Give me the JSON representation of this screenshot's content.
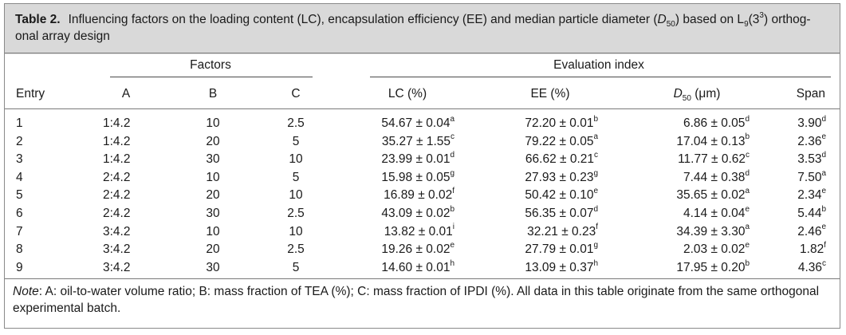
{
  "caption": {
    "label": "Table 2.",
    "text_before": "Influencing factors on the loading content (LC), encapsulation efficiency (EE) and median particle diameter (",
    "d_symbol": "D",
    "d_sub": "50",
    "text_mid": ") based on L",
    "l_sub": "9",
    "l_open": "(3",
    "l_sup": "3",
    "text_after": ") orthog-",
    "line2": "onal array design"
  },
  "group_headers": {
    "factors": "Factors",
    "evaluation": "Evaluation index"
  },
  "columns": {
    "entry": "Entry",
    "a": "A",
    "b": "B",
    "c": "C",
    "lc": "LC (%)",
    "ee": "EE (%)",
    "d50_symbol": "D",
    "d50_sub": "50",
    "d50_unit": " (μm)",
    "span": "Span"
  },
  "rows": [
    {
      "entry": "1",
      "a": "1:4.2",
      "b": "10",
      "c": "2.5",
      "lc": "54.67 ± 0.04",
      "lc_sup": "a",
      "ee": "72.20 ± 0.01",
      "ee_sup": "b",
      "d50": "6.86 ± 0.05",
      "d50_sup": "d",
      "span": "3.90",
      "span_sup": "d"
    },
    {
      "entry": "2",
      "a": "1:4.2",
      "b": "20",
      "c": "5",
      "lc": "35.27 ± 1.55",
      "lc_sup": "c",
      "ee": "79.22 ± 0.05",
      "ee_sup": "a",
      "d50": "17.04 ± 0.13",
      "d50_sup": "b",
      "span": "2.36",
      "span_sup": "e"
    },
    {
      "entry": "3",
      "a": "1:4.2",
      "b": "30",
      "c": "10",
      "lc": "23.99 ± 0.01",
      "lc_sup": "d",
      "ee": "66.62 ± 0.21",
      "ee_sup": "c",
      "d50": "11.77 ± 0.62",
      "d50_sup": "c",
      "span": "3.53",
      "span_sup": "d"
    },
    {
      "entry": "4",
      "a": "2:4.2",
      "b": "10",
      "c": "5",
      "lc": "15.98 ± 0.05",
      "lc_sup": "g",
      "ee": "27.93 ± 0.23",
      "ee_sup": "g",
      "d50": "7.44 ± 0.38",
      "d50_sup": "d",
      "span": "7.50",
      "span_sup": "a"
    },
    {
      "entry": "5",
      "a": "2:4.2",
      "b": "20",
      "c": "10",
      "lc": "16.89 ± 0.02",
      "lc_sup": "f",
      "ee": "50.42 ± 0.10",
      "ee_sup": "e",
      "d50": "35.65 ± 0.02",
      "d50_sup": "a",
      "span": "2.34",
      "span_sup": "e"
    },
    {
      "entry": "6",
      "a": "2:4.2",
      "b": "30",
      "c": "2.5",
      "lc": "43.09 ± 0.02",
      "lc_sup": "b",
      "ee": "56.35 ± 0.07",
      "ee_sup": "d",
      "d50": "4.14 ± 0.04",
      "d50_sup": "e",
      "span": "5.44",
      "span_sup": "b"
    },
    {
      "entry": "7",
      "a": "3:4.2",
      "b": "10",
      "c": "10",
      "lc": "13.82 ± 0.01",
      "lc_sup": "i",
      "ee": "32.21 ± 0.23",
      "ee_sup": "f",
      "d50": "34.39 ± 3.30",
      "d50_sup": "a",
      "span": "2.46",
      "span_sup": "e"
    },
    {
      "entry": "8",
      "a": "3:4.2",
      "b": "20",
      "c": "2.5",
      "lc": "19.26 ± 0.02",
      "lc_sup": "e",
      "ee": "27.79 ± 0.01",
      "ee_sup": "g",
      "d50": "2.03 ± 0.02",
      "d50_sup": "e",
      "span": "1.82",
      "span_sup": "f"
    },
    {
      "entry": "9",
      "a": "3:4.2",
      "b": "30",
      "c": "5",
      "lc": "14.60 ± 0.01",
      "lc_sup": "h",
      "ee": "13.09 ± 0.37",
      "ee_sup": "h",
      "d50": "17.95 ± 0.20",
      "d50_sup": "b",
      "span": "4.36",
      "span_sup": "c"
    }
  ],
  "note": {
    "label": "Note",
    "text": ": A: oil-to-water volume ratio; B: mass fraction of TEA (%); C: mass fraction of IPDI (%). All data in this table originate from the same orthogonal experimental batch."
  }
}
